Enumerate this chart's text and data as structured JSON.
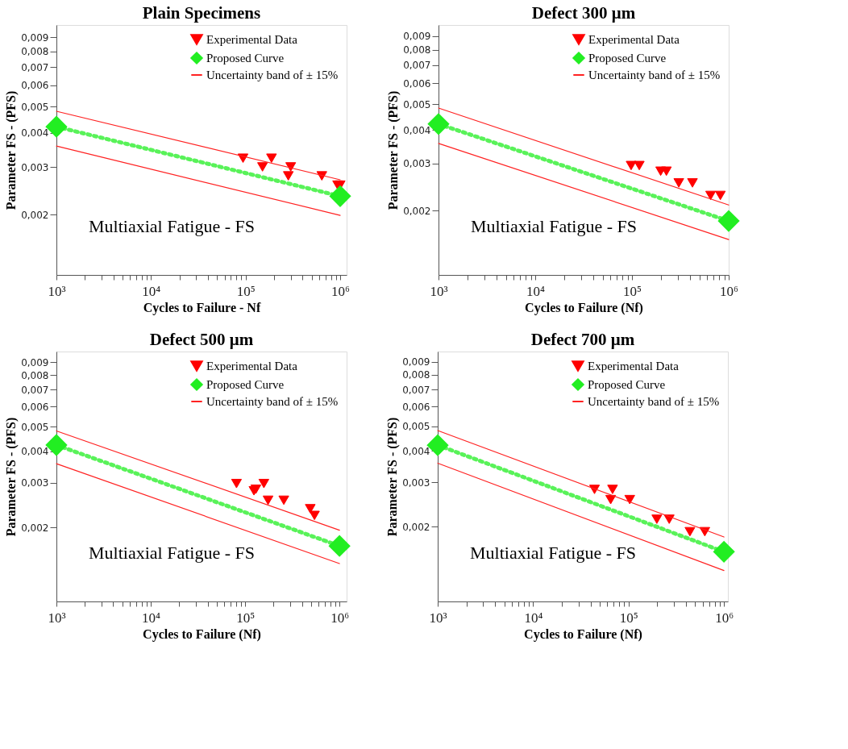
{
  "chart_data": [
    {
      "type": "scatter",
      "title": "Plain Specimens",
      "xlabel": "Cycles to Failure - Nf",
      "ylabel": "Parameter FS - (PFS)",
      "log": "xy",
      "legend": "top right",
      "grid": false,
      "annotations": [
        "Multiaxial Fatigue - FS"
      ],
      "xlim": [
        1000,
        1170000
      ],
      "ylim": [
        0.0012,
        0.01
      ],
      "xticks": [
        {
          "value": 1000,
          "label": "10³"
        },
        {
          "value": 2000,
          "label": null
        },
        {
          "value": 3000,
          "label": null
        },
        {
          "value": 4000,
          "label": null
        },
        {
          "value": 5000,
          "label": null
        },
        {
          "value": 6000,
          "label": null
        },
        {
          "value": 7000,
          "label": null
        },
        {
          "value": 8000,
          "label": null
        },
        {
          "value": 9000,
          "label": null
        },
        {
          "value": 10000,
          "label": "10⁴"
        },
        {
          "value": 20000,
          "label": null
        },
        {
          "value": 30000,
          "label": null
        },
        {
          "value": 40000,
          "label": null
        },
        {
          "value": 50000,
          "label": null
        },
        {
          "value": 60000,
          "label": null
        },
        {
          "value": 70000,
          "label": null
        },
        {
          "value": 80000,
          "label": null
        },
        {
          "value": 90000,
          "label": null
        },
        {
          "value": 100000,
          "label": "10⁵"
        },
        {
          "value": 200000,
          "label": null
        },
        {
          "value": 300000,
          "label": null
        },
        {
          "value": 400000,
          "label": null
        },
        {
          "value": 500000,
          "label": null
        },
        {
          "value": 600000,
          "label": null
        },
        {
          "value": 700000,
          "label": null
        },
        {
          "value": 800000,
          "label": null
        },
        {
          "value": 900000,
          "label": null
        },
        {
          "value": 1000000,
          "label": "10⁶"
        }
      ],
      "yticks": [
        {
          "value": 0.002,
          "label": "0,002"
        },
        {
          "value": 0.003,
          "label": "0,003"
        },
        {
          "value": 0.004,
          "label": "0,004"
        },
        {
          "value": 0.005,
          "label": "0,005"
        },
        {
          "value": 0.006,
          "label": "0,006"
        },
        {
          "value": 0.007,
          "label": "0,007"
        },
        {
          "value": 0.008,
          "label": "0,008"
        },
        {
          "value": 0.009,
          "label": "0,009"
        }
      ],
      "series": [
        {
          "name": "Experimental Data",
          "marker": "triangle",
          "color": "#ff0000",
          "x": [
            94000,
            151000,
            188000,
            283000,
            300000,
            640000,
            940000,
            1000000
          ],
          "values": [
            0.00323,
            0.003,
            0.00323,
            0.00278,
            0.003,
            0.00278,
            0.00257,
            0.00257
          ]
        },
        {
          "name": "Proposed Curve",
          "type": "line",
          "marker": "diamond",
          "line_style": "dotted",
          "color": "#22ee22",
          "x": [
            1000,
            1000000
          ],
          "values": [
            0.00422,
            0.00234
          ]
        },
        {
          "name": "Uncertainty band of ± 15%",
          "type": "line",
          "marker": "none",
          "line_style": "solid",
          "color": "#ff2222",
          "x": [
            1000,
            1000000
          ],
          "values": [
            0.00481,
            0.00269
          ]
        },
        {
          "type": "line",
          "marker": "none",
          "line_style": "solid",
          "color": "#ff2222",
          "x": [
            1000,
            1000000
          ],
          "values": [
            0.00358,
            0.00199
          ]
        }
      ]
    },
    {
      "type": "scatter",
      "title": "Defect 300 μm",
      "xlabel": "Cycles to Failure (Nf)",
      "ylabel": "Parameter FS - (PFS)",
      "log": "xy",
      "legend": "top right",
      "grid": false,
      "annotations": [
        "Multiaxial Fatigue - FS"
      ],
      "xlim": [
        1000,
        1000000
      ],
      "ylim": [
        0.00115,
        0.0099
      ],
      "xticks": [
        {
          "value": 1000,
          "label": "10³"
        },
        {
          "value": 2000,
          "label": null
        },
        {
          "value": 3000,
          "label": null
        },
        {
          "value": 4000,
          "label": null
        },
        {
          "value": 5000,
          "label": null
        },
        {
          "value": 6000,
          "label": null
        },
        {
          "value": 7000,
          "label": null
        },
        {
          "value": 8000,
          "label": null
        },
        {
          "value": 9000,
          "label": null
        },
        {
          "value": 10000,
          "label": "10⁴"
        },
        {
          "value": 20000,
          "label": null
        },
        {
          "value": 30000,
          "label": null
        },
        {
          "value": 40000,
          "label": null
        },
        {
          "value": 50000,
          "label": null
        },
        {
          "value": 60000,
          "label": null
        },
        {
          "value": 70000,
          "label": null
        },
        {
          "value": 80000,
          "label": null
        },
        {
          "value": 90000,
          "label": null
        },
        {
          "value": 100000,
          "label": "10⁵"
        },
        {
          "value": 200000,
          "label": null
        },
        {
          "value": 300000,
          "label": null
        },
        {
          "value": 400000,
          "label": null
        },
        {
          "value": 500000,
          "label": null
        },
        {
          "value": 600000,
          "label": null
        },
        {
          "value": 700000,
          "label": null
        },
        {
          "value": 800000,
          "label": null
        },
        {
          "value": 900000,
          "label": null
        },
        {
          "value": 1000000,
          "label": "10⁶"
        }
      ],
      "yticks": [
        {
          "value": 0.002,
          "label": "0,002"
        },
        {
          "value": 0.003,
          "label": "0,003"
        },
        {
          "value": 0.004,
          "label": "0,004"
        },
        {
          "value": 0.005,
          "label": "0,005"
        },
        {
          "value": 0.006,
          "label": "0,006"
        },
        {
          "value": 0.007,
          "label": "0,007"
        },
        {
          "value": 0.008,
          "label": "0,008"
        },
        {
          "value": 0.009,
          "label": "0,009"
        }
      ],
      "series": [
        {
          "name": "Experimental Data",
          "marker": "triangle",
          "color": "#ff0000",
          "x": [
            98000,
            119000,
            198000,
            227000,
            305000,
            422000,
            650000,
            820000
          ],
          "values": [
            0.00295,
            0.00295,
            0.00281,
            0.00281,
            0.00254,
            0.00254,
            0.00228,
            0.00228
          ]
        },
        {
          "name": "Proposed Curve",
          "type": "line",
          "marker": "diamond",
          "line_style": "dotted",
          "color": "#22ee22",
          "x": [
            1000,
            1000000
          ],
          "values": [
            0.00422,
            0.00183
          ]
        },
        {
          "name": "Uncertainty band of ± 15%",
          "type": "line",
          "marker": "none",
          "line_style": "solid",
          "color": "#ff2222",
          "x": [
            1000,
            1000000
          ],
          "values": [
            0.00484,
            0.0021
          ]
        },
        {
          "type": "line",
          "marker": "none",
          "line_style": "solid",
          "color": "#ff2222",
          "x": [
            1000,
            1000000
          ],
          "values": [
            0.00357,
            0.00156
          ]
        }
      ]
    },
    {
      "type": "scatter",
      "title": "Defect 500 μm",
      "xlabel": "Cycles to Failure (Nf)",
      "ylabel": "Parameter FS - (PFS)",
      "log": "xy",
      "legend": "top right",
      "grid": false,
      "annotations": [
        "Multiaxial Fatigue - FS"
      ],
      "xlim": [
        1000,
        1190000
      ],
      "ylim": [
        0.00102,
        0.0099
      ],
      "xticks": [
        {
          "value": 1000,
          "label": "10³"
        },
        {
          "value": 2000,
          "label": null
        },
        {
          "value": 3000,
          "label": null
        },
        {
          "value": 4000,
          "label": null
        },
        {
          "value": 5000,
          "label": null
        },
        {
          "value": 6000,
          "label": null
        },
        {
          "value": 7000,
          "label": null
        },
        {
          "value": 8000,
          "label": null
        },
        {
          "value": 9000,
          "label": null
        },
        {
          "value": 10000,
          "label": "10⁴"
        },
        {
          "value": 20000,
          "label": null
        },
        {
          "value": 30000,
          "label": null
        },
        {
          "value": 40000,
          "label": null
        },
        {
          "value": 50000,
          "label": null
        },
        {
          "value": 60000,
          "label": null
        },
        {
          "value": 70000,
          "label": null
        },
        {
          "value": 80000,
          "label": null
        },
        {
          "value": 90000,
          "label": null
        },
        {
          "value": 100000,
          "label": "10⁵"
        },
        {
          "value": 200000,
          "label": null
        },
        {
          "value": 300000,
          "label": null
        },
        {
          "value": 400000,
          "label": null
        },
        {
          "value": 500000,
          "label": null
        },
        {
          "value": 600000,
          "label": null
        },
        {
          "value": 700000,
          "label": null
        },
        {
          "value": 800000,
          "label": null
        },
        {
          "value": 900000,
          "label": null
        },
        {
          "value": 1000000,
          "label": "10⁶"
        }
      ],
      "yticks": [
        {
          "value": 0.002,
          "label": "0,002"
        },
        {
          "value": 0.003,
          "label": "0,003"
        },
        {
          "value": 0.004,
          "label": "0,004"
        },
        {
          "value": 0.005,
          "label": "0,005"
        },
        {
          "value": 0.006,
          "label": "0,006"
        },
        {
          "value": 0.007,
          "label": "0,007"
        },
        {
          "value": 0.008,
          "label": "0,008"
        },
        {
          "value": 0.009,
          "label": "0,009"
        }
      ],
      "series": [
        {
          "name": "Experimental Data",
          "marker": "triangle",
          "color": "#ff0000",
          "x": [
            81000,
            124000,
            130000,
            158000,
            175000,
            257000,
            490000,
            543000
          ],
          "values": [
            0.00298,
            0.00279,
            0.00283,
            0.00298,
            0.00256,
            0.00256,
            0.00237,
            0.00223
          ]
        },
        {
          "name": "Proposed Curve",
          "type": "line",
          "marker": "diamond",
          "line_style": "dotted",
          "color": "#22ee22",
          "x": [
            1000,
            1000000
          ],
          "values": [
            0.00423,
            0.00169
          ]
        },
        {
          "name": "Uncertainty band of ± 15%",
          "type": "line",
          "marker": "none",
          "line_style": "solid",
          "color": "#ff2222",
          "x": [
            1000,
            1000000
          ],
          "values": [
            0.00481,
            0.00195
          ]
        },
        {
          "type": "line",
          "marker": "none",
          "line_style": "solid",
          "color": "#ff2222",
          "x": [
            1000,
            1000000
          ],
          "values": [
            0.00357,
            0.00144
          ]
        }
      ]
    },
    {
      "type": "scatter",
      "title": "Defect 700 μm",
      "xlabel": "Cycles to Failure (Nf)",
      "ylabel": "Parameter FS - (PFS)",
      "log": "xy",
      "legend": "top right",
      "grid": false,
      "annotations": [
        "Multiaxial Fatigue - FS"
      ],
      "xlim": [
        1000,
        1100000
      ],
      "ylim": [
        0.00101,
        0.0099
      ],
      "xticks": [
        {
          "value": 1000,
          "label": "10³"
        },
        {
          "value": 2000,
          "label": null
        },
        {
          "value": 3000,
          "label": null
        },
        {
          "value": 4000,
          "label": null
        },
        {
          "value": 5000,
          "label": null
        },
        {
          "value": 6000,
          "label": null
        },
        {
          "value": 7000,
          "label": null
        },
        {
          "value": 8000,
          "label": null
        },
        {
          "value": 9000,
          "label": null
        },
        {
          "value": 10000,
          "label": "10⁴"
        },
        {
          "value": 20000,
          "label": null
        },
        {
          "value": 30000,
          "label": null
        },
        {
          "value": 40000,
          "label": null
        },
        {
          "value": 50000,
          "label": null
        },
        {
          "value": 60000,
          "label": null
        },
        {
          "value": 70000,
          "label": null
        },
        {
          "value": 80000,
          "label": null
        },
        {
          "value": 90000,
          "label": null
        },
        {
          "value": 100000,
          "label": "10⁵"
        },
        {
          "value": 200000,
          "label": null
        },
        {
          "value": 300000,
          "label": null
        },
        {
          "value": 400000,
          "label": null
        },
        {
          "value": 500000,
          "label": null
        },
        {
          "value": 600000,
          "label": null
        },
        {
          "value": 700000,
          "label": null
        },
        {
          "value": 800000,
          "label": null
        },
        {
          "value": 900000,
          "label": null
        },
        {
          "value": 1000000,
          "label": "10⁶"
        }
      ],
      "yticks": [
        {
          "value": 0.002,
          "label": "0,002"
        },
        {
          "value": 0.003,
          "label": "0,003"
        },
        {
          "value": 0.004,
          "label": "0,004"
        },
        {
          "value": 0.005,
          "label": "0,005"
        },
        {
          "value": 0.006,
          "label": "0,006"
        },
        {
          "value": 0.007,
          "label": "0,007"
        },
        {
          "value": 0.008,
          "label": "0,008"
        },
        {
          "value": 0.009,
          "label": "0,009"
        }
      ],
      "series": [
        {
          "name": "Experimental Data",
          "marker": "triangle",
          "color": "#ff0000",
          "x": [
            44000,
            65000,
            68000,
            103000,
            198000,
            267000,
            440000,
            630000
          ],
          "values": [
            0.00281,
            0.00256,
            0.00281,
            0.00256,
            0.00214,
            0.00214,
            0.00191,
            0.00191
          ]
        },
        {
          "name": "Proposed Curve",
          "type": "line",
          "marker": "diamond",
          "line_style": "dotted",
          "color": "#22ee22",
          "x": [
            1000,
            1000000
          ],
          "values": [
            0.00421,
            0.00159
          ]
        },
        {
          "name": "Uncertainty band of ± 15%",
          "type": "line",
          "marker": "none",
          "line_style": "solid",
          "color": "#ff2222",
          "x": [
            1000,
            1000000
          ],
          "values": [
            0.00481,
            0.00182
          ]
        },
        {
          "type": "line",
          "marker": "none",
          "line_style": "solid",
          "color": "#ff2222",
          "x": [
            1000,
            1000000
          ],
          "values": [
            0.00357,
            0.00134
          ]
        }
      ]
    }
  ]
}
